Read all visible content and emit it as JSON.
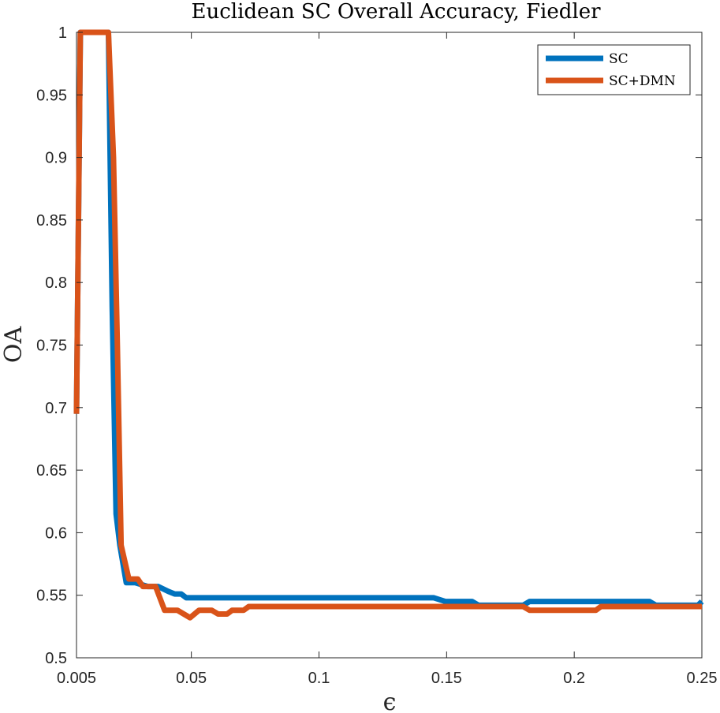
{
  "chart_data": {
    "type": "line",
    "title": "Euclidean SC Overall Accuracy, Fiedler",
    "xlabel": "ϵ",
    "ylabel": "OA",
    "xlim": [
      0.005,
      0.25
    ],
    "ylim": [
      0.5,
      1.0
    ],
    "xticks": [
      0.005,
      0.05,
      0.1,
      0.15,
      0.2,
      0.25
    ],
    "xtick_labels": [
      "0.005",
      "0.05",
      "0.1",
      "0.15",
      "0.2",
      "0.25"
    ],
    "yticks": [
      0.5,
      0.55,
      0.6,
      0.65,
      0.7,
      0.75,
      0.8,
      0.85,
      0.9,
      0.95,
      1.0
    ],
    "ytick_labels": [
      "0.5",
      "0.55",
      "0.6",
      "0.65",
      "0.7",
      "0.75",
      "0.8",
      "0.85",
      "0.9",
      "0.95",
      "1"
    ],
    "legend_position": "top-right",
    "grid": false,
    "series": [
      {
        "name": "SC",
        "color": "#0072BD",
        "points": [
          [
            0.005,
            0.695
          ],
          [
            0.0065,
            1.0
          ],
          [
            0.008,
            1.0
          ],
          [
            0.0125,
            1.0
          ],
          [
            0.0145,
            1.0
          ],
          [
            0.0175,
            1.0
          ],
          [
            0.019,
            0.78
          ],
          [
            0.0205,
            0.615
          ],
          [
            0.022,
            0.59
          ],
          [
            0.0245,
            0.56
          ],
          [
            0.028,
            0.56
          ],
          [
            0.033,
            0.557
          ],
          [
            0.037,
            0.557
          ],
          [
            0.041,
            0.553
          ],
          [
            0.0435,
            0.551
          ],
          [
            0.046,
            0.551
          ],
          [
            0.048,
            0.548
          ],
          [
            0.145,
            0.548
          ],
          [
            0.1495,
            0.545
          ],
          [
            0.16,
            0.545
          ],
          [
            0.1625,
            0.542
          ],
          [
            0.18,
            0.542
          ],
          [
            0.1825,
            0.545
          ],
          [
            0.2295,
            0.545
          ],
          [
            0.232,
            0.542
          ],
          [
            0.2485,
            0.542
          ],
          [
            0.25,
            0.545
          ]
        ]
      },
      {
        "name": "SC+DMN",
        "color": "#D95319",
        "points": [
          [
            0.005,
            0.695
          ],
          [
            0.0065,
            1.0
          ],
          [
            0.008,
            1.0
          ],
          [
            0.0125,
            1.0
          ],
          [
            0.0145,
            1.0
          ],
          [
            0.0175,
            1.0
          ],
          [
            0.0195,
            0.9
          ],
          [
            0.021,
            0.75
          ],
          [
            0.0225,
            0.59
          ],
          [
            0.0255,
            0.563
          ],
          [
            0.029,
            0.563
          ],
          [
            0.031,
            0.557
          ],
          [
            0.036,
            0.557
          ],
          [
            0.0395,
            0.538
          ],
          [
            0.0445,
            0.538
          ],
          [
            0.0495,
            0.532
          ],
          [
            0.053,
            0.538
          ],
          [
            0.058,
            0.538
          ],
          [
            0.0605,
            0.535
          ],
          [
            0.064,
            0.535
          ],
          [
            0.066,
            0.538
          ],
          [
            0.0705,
            0.538
          ],
          [
            0.0725,
            0.541
          ],
          [
            0.18,
            0.541
          ],
          [
            0.1825,
            0.538
          ],
          [
            0.2085,
            0.538
          ],
          [
            0.2105,
            0.541
          ],
          [
            0.25,
            0.541
          ]
        ]
      }
    ]
  }
}
